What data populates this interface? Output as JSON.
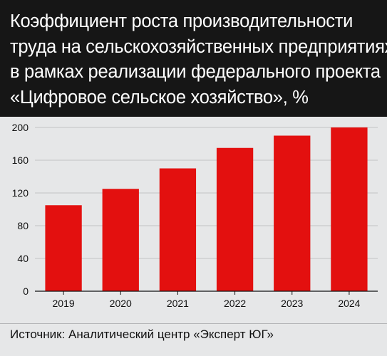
{
  "title_lines": [
    "Коэффициент роста производительности",
    "труда на сельскохозяйственных предприятиях",
    "в рамках реализации федерального проекта",
    "«Цифровое сельское хозяйство», %"
  ],
  "source": "Источник: Аналитический центр «Эксперт ЮГ»",
  "colors": {
    "bar": "#e3100f",
    "title_background": "#161616",
    "chart_background": "#e6e7e8",
    "gridline": "#c2c3c5"
  },
  "chart_data": {
    "type": "bar",
    "title": "Коэффициент роста производительности труда на сельскохозяйственных предприятиях в рамках реализации федерального проекта «Цифровое сельское хозяйство», %",
    "categories": [
      "2019",
      "2020",
      "2021",
      "2022",
      "2023",
      "2024"
    ],
    "values": [
      105,
      125,
      150,
      175,
      190,
      200
    ],
    "xlabel": "",
    "ylabel": "",
    "ylim": [
      0,
      200
    ],
    "yticks": [
      0,
      40,
      80,
      120,
      160,
      200
    ],
    "grid": true,
    "legend": "none"
  }
}
